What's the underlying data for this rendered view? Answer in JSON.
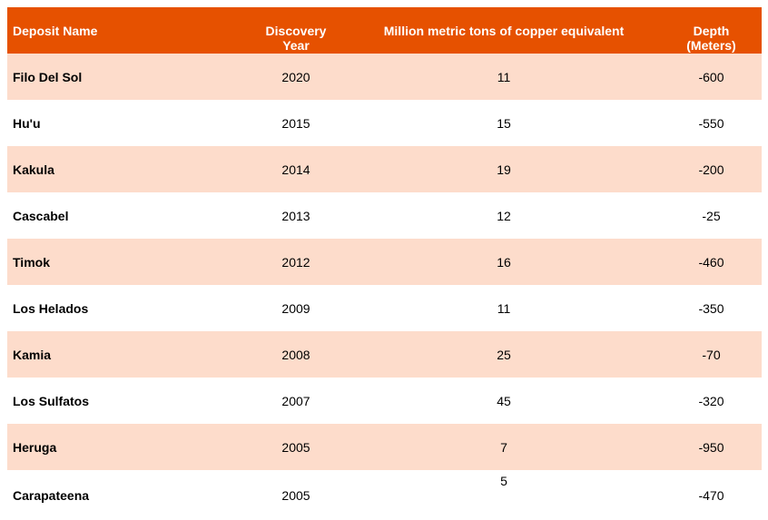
{
  "colors": {
    "header_bg": "#e65100",
    "band_bg": "#fddccb",
    "plain_bg": "#ffffff",
    "header_text": "#ffffff"
  },
  "chart_data": {
    "type": "table",
    "columns": [
      "Deposit Name",
      "Discovery Year",
      "Million metric tons of copper equivalent",
      "Depth (Meters)"
    ],
    "header": {
      "name": "Deposit Name",
      "year_line1": "Discovery",
      "year_line2": "Year",
      "tons": "Million metric tons of copper equivalent",
      "depth_line1": "Depth",
      "depth_line2": "(Meters)"
    },
    "rows": [
      {
        "name": "Filo Del Sol",
        "year": "2020",
        "tons": "11",
        "depth": "-600"
      },
      {
        "name": "Hu'u",
        "year": "2015",
        "tons": "15",
        "depth": "-550"
      },
      {
        "name": "Kakula",
        "year": "2014",
        "tons": "19",
        "depth": "-200"
      },
      {
        "name": "Cascabel",
        "year": "2013",
        "tons": "12",
        "depth": "-25"
      },
      {
        "name": "Timok",
        "year": "2012",
        "tons": "16",
        "depth": "-460"
      },
      {
        "name": "Los Helados",
        "year": "2009",
        "tons": "11",
        "depth": "-350"
      },
      {
        "name": "Kamia",
        "year": "2008",
        "tons": "25",
        "depth": "-70"
      },
      {
        "name": "Los Sulfatos",
        "year": "2007",
        "tons": "45",
        "depth": "-320"
      },
      {
        "name": "Heruga",
        "year": "2005",
        "tons": "7",
        "depth": "-950"
      },
      {
        "name": "Carapateena",
        "year": "2005",
        "tons": "5",
        "depth": "-470"
      }
    ]
  }
}
